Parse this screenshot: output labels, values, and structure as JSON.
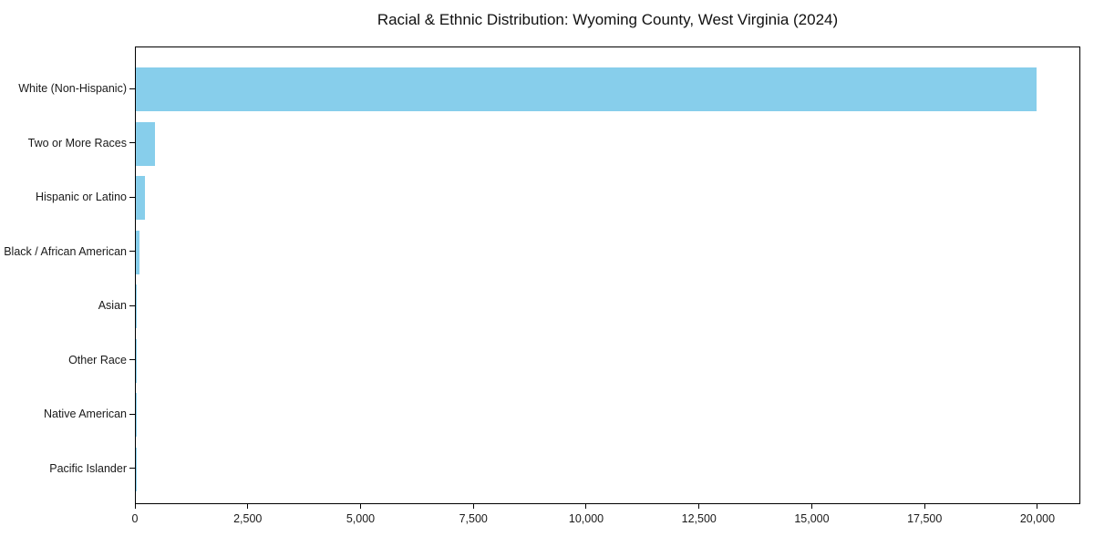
{
  "chart_data": {
    "type": "bar",
    "orientation": "horizontal",
    "title": "Racial & Ethnic Distribution: Wyoming County, West Virginia (2024)",
    "categories": [
      "White (Non-Hispanic)",
      "Two or More Races",
      "Hispanic or Latino",
      "Black / African American",
      "Asian",
      "Other Race",
      "Native American",
      "Pacific Islander"
    ],
    "values": [
      19950,
      420,
      205,
      90,
      10,
      7,
      4,
      2
    ],
    "bar_color": "#87CEEB",
    "xlabel": "",
    "ylabel": "",
    "xlim": [
      0,
      20950
    ],
    "x_ticks": [
      0,
      2500,
      5000,
      7500,
      10000,
      12500,
      15000,
      17500,
      20000
    ],
    "x_tick_labels": [
      "0",
      "2,500",
      "5,000",
      "7,500",
      "10,000",
      "12,500",
      "15,000",
      "17,500",
      "20,000"
    ],
    "grid": false,
    "legend": false,
    "spine_color": "#000000",
    "text_color": "#1a1a1a",
    "background_color": "#ffffff"
  }
}
